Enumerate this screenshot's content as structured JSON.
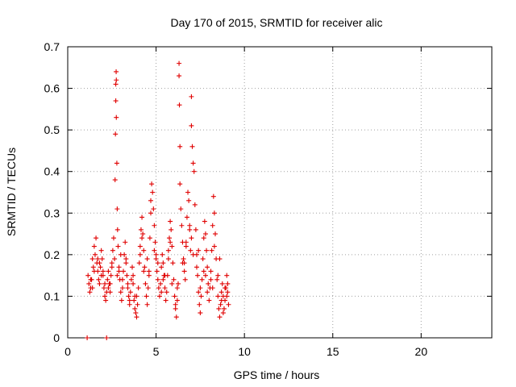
{
  "chart_data": {
    "type": "scatter",
    "title": "Day 170 of 2015, SRMTID for receiver alic",
    "xlabel": "GPS time / hours",
    "ylabel": "SRMTID / TECUs",
    "xlim": [
      0,
      24
    ],
    "ylim": [
      0,
      0.7
    ],
    "xticks": [
      0,
      5,
      10,
      15,
      20
    ],
    "yticks": [
      0,
      0.1,
      0.2,
      0.3,
      0.4,
      0.5,
      0.6,
      0.7
    ],
    "grid": true,
    "series_color": "#e00000",
    "series": [
      {
        "name": "SRMTID",
        "x": [
          1.1,
          2.2,
          1.15,
          1.2,
          1.25,
          1.3,
          1.35,
          1.4,
          1.45,
          1.5,
          1.55,
          1.6,
          1.65,
          1.7,
          1.75,
          1.8,
          1.85,
          1.9,
          1.95,
          2.0,
          2.05,
          2.1,
          2.15,
          2.2,
          2.25,
          2.3,
          2.35,
          2.4,
          2.45,
          2.5,
          2.55,
          2.6,
          2.65,
          2.68,
          2.7,
          2.72,
          2.72,
          2.74,
          2.75,
          2.75,
          2.78,
          2.8,
          2.82,
          2.85,
          2.9,
          2.95,
          3.0,
          3.05,
          3.1,
          3.15,
          3.2,
          3.25,
          3.3,
          3.35,
          3.4,
          3.45,
          3.5,
          3.55,
          3.6,
          3.65,
          3.7,
          3.75,
          3.8,
          3.85,
          3.9,
          3.95,
          4.0,
          4.05,
          4.1,
          4.15,
          4.2,
          4.25,
          4.3,
          4.35,
          4.4,
          4.45,
          4.5,
          4.55,
          4.6,
          4.65,
          4.7,
          4.75,
          4.8,
          4.85,
          4.9,
          4.95,
          5.0,
          5.05,
          5.1,
          5.15,
          5.2,
          5.25,
          5.3,
          5.35,
          5.4,
          5.45,
          5.5,
          5.55,
          5.6,
          5.65,
          5.7,
          5.75,
          5.8,
          5.85,
          5.9,
          5.95,
          6.0,
          6.05,
          6.1,
          6.15,
          6.2,
          6.25,
          6.3,
          6.3,
          6.32,
          6.35,
          6.35,
          6.4,
          6.45,
          6.5,
          6.55,
          6.6,
          6.65,
          6.7,
          6.75,
          6.8,
          6.85,
          6.9,
          6.95,
          7.0,
          7.0,
          7.05,
          7.1,
          7.15,
          7.2,
          7.25,
          7.3,
          7.35,
          7.4,
          7.45,
          7.5,
          7.55,
          7.6,
          7.65,
          7.7,
          7.75,
          7.8,
          7.85,
          7.9,
          7.95,
          8.0,
          8.05,
          8.1,
          8.15,
          8.2,
          8.25,
          8.3,
          8.35,
          8.4,
          8.45,
          8.5,
          8.55,
          8.6,
          8.65,
          8.7,
          8.75,
          8.8,
          8.85,
          8.9,
          8.95,
          9.0,
          9.05,
          9.1,
          1.3,
          1.5,
          1.7,
          1.9,
          2.1,
          2.3,
          2.5,
          2.9,
          3.1,
          3.3,
          3.5,
          3.7,
          3.9,
          4.1,
          4.3,
          4.5,
          4.7,
          4.9,
          5.1,
          5.3,
          5.5,
          5.7,
          5.9,
          6.1,
          6.5,
          6.7,
          6.9,
          7.1,
          7.3,
          7.5,
          7.7,
          7.9,
          8.1,
          8.3,
          8.5,
          8.7,
          8.9,
          9.0,
          1.4,
          1.8,
          2.0,
          2.4,
          2.8,
          3.0,
          3.4,
          3.8,
          4.2,
          4.6,
          5.0,
          5.4,
          5.8,
          6.2,
          6.6,
          7.0,
          7.4,
          7.8,
          8.2,
          8.6,
          8.8,
          9.05
        ],
        "y": [
          0.0,
          0.0,
          0.15,
          0.13,
          0.11,
          0.12,
          0.14,
          0.19,
          0.17,
          0.22,
          0.2,
          0.24,
          0.18,
          0.16,
          0.14,
          0.13,
          0.17,
          0.21,
          0.19,
          0.15,
          0.12,
          0.1,
          0.09,
          0.11,
          0.14,
          0.16,
          0.13,
          0.11,
          0.15,
          0.18,
          0.21,
          0.24,
          0.19,
          0.38,
          0.49,
          0.57,
          0.61,
          0.64,
          0.62,
          0.53,
          0.42,
          0.31,
          0.26,
          0.22,
          0.17,
          0.14,
          0.11,
          0.09,
          0.12,
          0.16,
          0.2,
          0.23,
          0.19,
          0.15,
          0.12,
          0.1,
          0.08,
          0.11,
          0.14,
          0.17,
          0.13,
          0.09,
          0.07,
          0.06,
          0.05,
          0.08,
          0.12,
          0.18,
          0.22,
          0.26,
          0.29,
          0.25,
          0.21,
          0.17,
          0.13,
          0.1,
          0.08,
          0.12,
          0.16,
          0.24,
          0.33,
          0.37,
          0.35,
          0.31,
          0.27,
          0.23,
          0.19,
          0.16,
          0.14,
          0.12,
          0.1,
          0.13,
          0.17,
          0.2,
          0.18,
          0.15,
          0.12,
          0.09,
          0.11,
          0.15,
          0.19,
          0.24,
          0.28,
          0.26,
          0.22,
          0.18,
          0.14,
          0.1,
          0.07,
          0.05,
          0.09,
          0.13,
          0.66,
          0.63,
          0.56,
          0.46,
          0.37,
          0.31,
          0.27,
          0.23,
          0.19,
          0.16,
          0.14,
          0.22,
          0.29,
          0.35,
          0.33,
          0.27,
          0.21,
          0.51,
          0.58,
          0.46,
          0.42,
          0.4,
          0.32,
          0.26,
          0.2,
          0.15,
          0.11,
          0.08,
          0.06,
          0.1,
          0.14,
          0.19,
          0.24,
          0.28,
          0.25,
          0.21,
          0.17,
          0.13,
          0.09,
          0.12,
          0.16,
          0.21,
          0.27,
          0.34,
          0.3,
          0.25,
          0.19,
          0.14,
          0.1,
          0.07,
          0.05,
          0.08,
          0.11,
          0.13,
          0.1,
          0.07,
          0.09,
          0.12,
          0.15,
          0.11,
          0.08,
          0.14,
          0.16,
          0.19,
          0.15,
          0.13,
          0.12,
          0.17,
          0.16,
          0.14,
          0.18,
          0.09,
          0.15,
          0.1,
          0.2,
          0.16,
          0.19,
          0.3,
          0.21,
          0.18,
          0.11,
          0.15,
          0.21,
          0.13,
          0.08,
          0.18,
          0.23,
          0.26,
          0.2,
          0.17,
          0.12,
          0.16,
          0.11,
          0.14,
          0.22,
          0.15,
          0.09,
          0.12,
          0.1,
          0.12,
          0.18,
          0.16,
          0.13,
          0.15,
          0.2,
          0.13,
          0.1,
          0.24,
          0.15,
          0.2,
          0.14,
          0.23,
          0.12,
          0.18,
          0.24,
          0.21,
          0.15,
          0.12,
          0.19,
          0.06,
          0.13
        ]
      }
    ]
  }
}
